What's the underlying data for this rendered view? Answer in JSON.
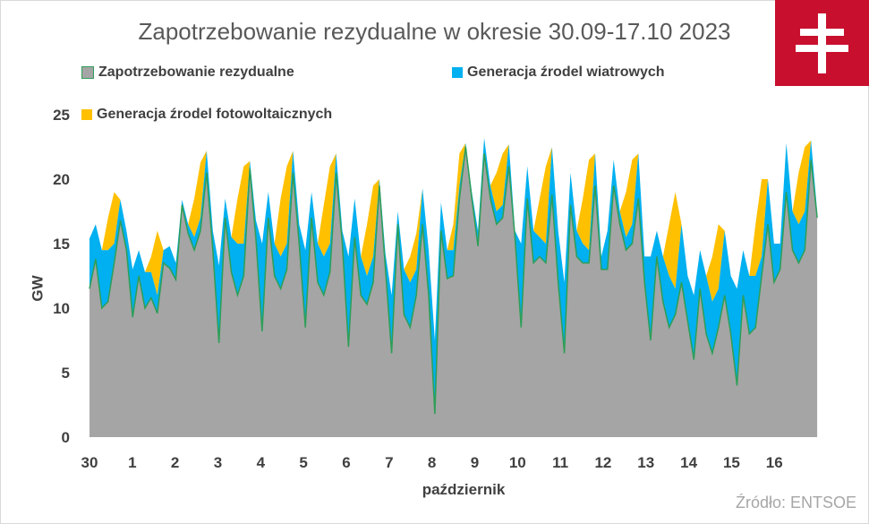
{
  "title": "Zapotrzebowanie rezydualne w okresie 30.09-17.10 2023",
  "source": "Źródło: ENTSOE",
  "colors": {
    "residual": "#a5a5a5",
    "residual_edge": "#2e9e57",
    "wind": "#00b0f0",
    "pv": "#ffc000",
    "logo": "#c8102e"
  },
  "chart_data": {
    "type": "area",
    "stacked": true,
    "xlabel": "październik",
    "ylabel": "GW",
    "ylim": [
      0,
      25
    ],
    "yticks": [
      0,
      5,
      10,
      15,
      20,
      25
    ],
    "x_ticks": [
      "30",
      "1",
      "2",
      "3",
      "4",
      "5",
      "6",
      "7",
      "8",
      "9",
      "10",
      "11",
      "12",
      "13",
      "14",
      "15",
      "16"
    ],
    "grid": false,
    "legend_position": "top",
    "series": [
      {
        "name": "Zapotrzebowanie rezydualne",
        "values": [
          [
            11.5,
            13.8,
            10.0,
            10.5,
            13.5,
            16.8,
            14.5
          ],
          [
            9.3,
            12.5,
            10.0,
            10.8,
            9.6,
            13.5,
            13.1
          ],
          [
            12.2,
            18.0,
            15.8,
            14.5,
            16.0,
            20.5,
            14.5
          ],
          [
            7.3,
            17.0,
            12.8,
            11.0,
            12.5,
            20.8,
            15.3
          ],
          [
            8.2,
            17.0,
            12.5,
            11.5,
            13.0,
            20.5,
            15.0
          ],
          [
            8.5,
            17.0,
            12.0,
            11.0,
            12.8,
            20.5,
            15.0
          ],
          [
            7.0,
            15.5,
            11.0,
            10.3,
            12.0,
            19.5,
            13.0
          ],
          [
            6.5,
            16.5,
            9.5,
            8.5,
            11.0,
            16.5,
            11.0
          ],
          [
            1.8,
            16.0,
            12.3,
            12.5,
            18.5,
            22.5,
            18.5
          ],
          [
            14.8,
            22.0,
            18.5,
            16.5,
            17.0,
            21.0,
            15.5
          ],
          [
            8.5,
            18.5,
            13.5,
            14.0,
            13.5,
            18.8,
            12.0
          ],
          [
            6.5,
            18.0,
            14.0,
            13.5,
            13.5,
            19.5,
            13.0
          ],
          [
            13.0,
            19.5,
            16.5,
            14.5,
            15.0,
            18.5,
            12.0
          ],
          [
            7.5,
            14.0,
            10.5,
            8.5,
            9.5,
            12.0,
            9.0
          ],
          [
            6.0,
            11.5,
            8.0,
            6.5,
            8.5,
            11.0,
            8.0
          ],
          [
            4.0,
            11.0,
            8.0,
            8.5,
            12.5,
            16.5,
            12.0
          ],
          [
            13.0,
            19.0,
            14.5,
            13.5,
            14.5,
            21.5,
            17.0
          ]
        ]
      },
      {
        "name": "Generacja źrodel wiatrowych",
        "values": [
          [
            15.4,
            16.5,
            14.5,
            14.5,
            15.0,
            18.4,
            16.0
          ],
          [
            13.0,
            14.5,
            12.8,
            12.8,
            11.0,
            14.5,
            14.8
          ],
          [
            13.5,
            18.4,
            16.5,
            15.5,
            17.0,
            22.2,
            16.0
          ],
          [
            13.3,
            18.5,
            15.5,
            15.0,
            15.0,
            21.4,
            16.8
          ],
          [
            15.0,
            19.0,
            15.0,
            14.0,
            15.0,
            22.2,
            16.5
          ],
          [
            14.5,
            19.0,
            15.0,
            14.0,
            15.0,
            22.0,
            16.0
          ],
          [
            14.0,
            18.5,
            14.0,
            12.5,
            14.0,
            20.0,
            14.2
          ],
          [
            11.0,
            17.5,
            13.0,
            12.0,
            13.0,
            19.3,
            14.5
          ],
          [
            7.5,
            18.2,
            14.5,
            14.5,
            19.5,
            22.8,
            19.0
          ],
          [
            16.0,
            23.2,
            19.5,
            17.5,
            18.0,
            22.7,
            16.0
          ],
          [
            15.0,
            21.0,
            16.0,
            15.5,
            15.0,
            22.5,
            16.0
          ],
          [
            12.0,
            20.5,
            16.0,
            15.0,
            14.5,
            22.0,
            14.0
          ],
          [
            16.0,
            21.5,
            17.5,
            15.5,
            16.5,
            22.0,
            14.0
          ],
          [
            14.0,
            16.0,
            14.0,
            12.5,
            11.5,
            16.5,
            12.5
          ],
          [
            11.0,
            14.5,
            12.5,
            10.5,
            11.5,
            16.0,
            12.5
          ],
          [
            11.5,
            14.5,
            12.5,
            12.5,
            14.0,
            20.0,
            15.0
          ],
          [
            15.0,
            22.8,
            17.5,
            16.5,
            17.5,
            23.0,
            17.5
          ]
        ]
      },
      {
        "name": "Generacja źrodel fotowoltaicznych",
        "values": [
          [
            15.4,
            16.5,
            14.5,
            17.0,
            19.0,
            18.4,
            16.0
          ],
          [
            13.0,
            14.5,
            12.8,
            14.0,
            16.0,
            14.5,
            14.8
          ],
          [
            13.5,
            18.4,
            16.5,
            18.5,
            21.3,
            22.2,
            16.0
          ],
          [
            13.3,
            18.5,
            15.5,
            18.5,
            21.0,
            21.4,
            16.8
          ],
          [
            15.0,
            19.0,
            15.0,
            18.5,
            21.0,
            22.2,
            16.5
          ],
          [
            14.5,
            19.0,
            15.0,
            18.0,
            21.0,
            22.0,
            16.0
          ],
          [
            14.0,
            18.5,
            14.0,
            16.5,
            19.5,
            20.0,
            14.2
          ],
          [
            11.0,
            17.5,
            13.0,
            14.0,
            15.8,
            19.3,
            14.5
          ],
          [
            7.5,
            18.2,
            14.5,
            16.5,
            22.0,
            22.8,
            19.0
          ],
          [
            16.0,
            23.2,
            19.5,
            20.5,
            22.0,
            22.7,
            16.0
          ],
          [
            15.0,
            21.0,
            16.0,
            18.5,
            21.0,
            22.5,
            16.0
          ],
          [
            12.0,
            20.5,
            16.0,
            18.5,
            21.5,
            22.0,
            14.0
          ],
          [
            16.0,
            21.5,
            17.5,
            19.0,
            21.5,
            22.0,
            14.0
          ],
          [
            14.0,
            16.0,
            14.0,
            16.5,
            19.0,
            16.5,
            12.5
          ],
          [
            11.0,
            14.5,
            12.5,
            14.0,
            16.5,
            16.0,
            12.5
          ],
          [
            11.5,
            14.5,
            12.5,
            16.5,
            20.0,
            20.0,
            15.0
          ],
          [
            15.0,
            22.8,
            17.5,
            20.5,
            22.5,
            23.0,
            17.5
          ]
        ]
      }
    ]
  }
}
